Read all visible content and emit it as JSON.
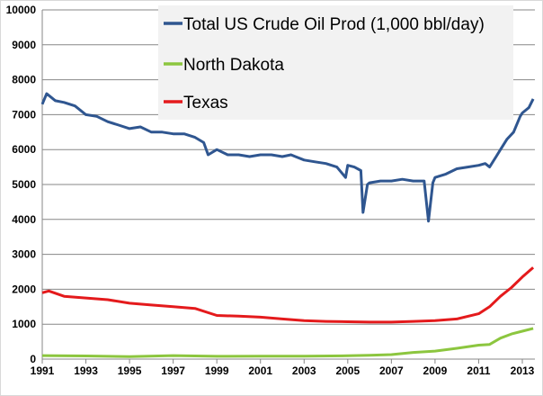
{
  "chart_data": {
    "type": "line",
    "title": "",
    "xlabel": "",
    "ylabel": "",
    "xlim": [
      1991,
      2013.6
    ],
    "ylim": [
      0,
      10000
    ],
    "yticks": [
      0,
      1000,
      2000,
      3000,
      4000,
      5000,
      6000,
      7000,
      8000,
      9000,
      10000
    ],
    "xticks": [
      "1991",
      "1993",
      "1995",
      "1997",
      "1999",
      "2001",
      "2003",
      "2005",
      "2007",
      "2009",
      "2011",
      "2013"
    ],
    "grid": "horizontal",
    "legend_position": "top-center",
    "series": [
      {
        "name": "Total US Crude Oil Prod (1,000 bbl/day)",
        "color": "#2f5690",
        "x": [
          1991,
          1991.2,
          1991.6,
          1992,
          1992.5,
          1993,
          1993.5,
          1994,
          1994.5,
          1995,
          1995.5,
          1996,
          1996.5,
          1997,
          1997.5,
          1998,
          1998.4,
          1998.6,
          1999,
          1999.5,
          2000,
          2000.5,
          2001,
          2001.5,
          2002,
          2002.4,
          2002.6,
          2003,
          2003.5,
          2004,
          2004.5,
          2004.9,
          2005,
          2005.3,
          2005.6,
          2005.7,
          2005.9,
          2006,
          2006.5,
          2007,
          2007.5,
          2008,
          2008.5,
          2008.7,
          2008.9,
          2009,
          2009.5,
          2010,
          2010.5,
          2011,
          2011.3,
          2011.5,
          2011.8,
          2012,
          2012.3,
          2012.6,
          2012.9,
          2013,
          2013.3,
          2013.5
        ],
        "y": [
          7300,
          7600,
          7400,
          7350,
          7250,
          7000,
          6950,
          6800,
          6700,
          6600,
          6650,
          6500,
          6500,
          6450,
          6450,
          6350,
          6200,
          5850,
          6000,
          5850,
          5850,
          5800,
          5850,
          5850,
          5800,
          5850,
          5800,
          5700,
          5650,
          5600,
          5500,
          5200,
          5550,
          5500,
          5400,
          4200,
          5000,
          5050,
          5100,
          5100,
          5150,
          5100,
          5100,
          3950,
          5050,
          5200,
          5300,
          5450,
          5500,
          5550,
          5600,
          5500,
          5800,
          6000,
          6300,
          6500,
          6950,
          7050,
          7200,
          7450
        ]
      },
      {
        "name": "North Dakota",
        "color": "#8cc63f",
        "x": [
          1991,
          1993,
          1995,
          1997,
          1999,
          2001,
          2003,
          2005,
          2006,
          2007,
          2008,
          2009,
          2010,
          2011,
          2011.5,
          2012,
          2012.5,
          2013,
          2013.5
        ],
        "y": [
          100,
          90,
          70,
          100,
          80,
          85,
          85,
          95,
          110,
          130,
          190,
          230,
          310,
          400,
          420,
          600,
          720,
          800,
          880
        ]
      },
      {
        "name": "Texas",
        "color": "#e41a1c",
        "x": [
          1991,
          1991.3,
          1992,
          1993,
          1994,
          1995,
          1996,
          1997,
          1998,
          1999,
          2000,
          2001,
          2002,
          2003,
          2004,
          2005,
          2006,
          2007,
          2008,
          2009,
          2010,
          2011,
          2011.5,
          2012,
          2012.5,
          2013,
          2013.5
        ],
        "y": [
          1900,
          1950,
          1800,
          1750,
          1700,
          1600,
          1550,
          1500,
          1450,
          1250,
          1230,
          1200,
          1150,
          1100,
          1080,
          1070,
          1060,
          1060,
          1080,
          1100,
          1150,
          1300,
          1500,
          1800,
          2050,
          2350,
          2620
        ]
      }
    ]
  }
}
